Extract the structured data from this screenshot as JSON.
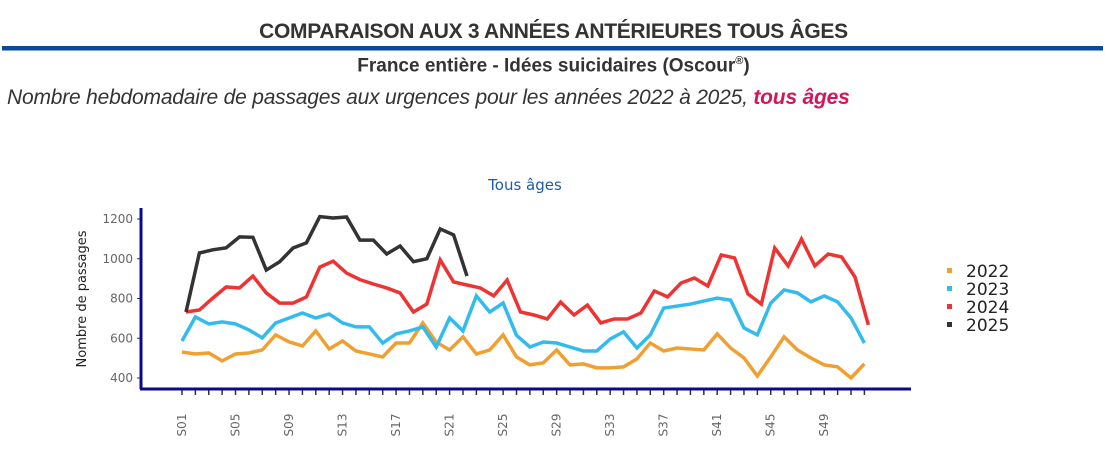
{
  "header": {
    "title": "COMPARAISON AUX 3 ANNÉES ANTÉRIEURES TOUS ÂGES",
    "subtitle": "France entière - Idées suicidaires (Oscour",
    "subtitle_sup": "®",
    "subtitle_end": ")",
    "description": "Nombre hebdomadaire de passages aux urgences pour les années 2022 à 2025, ",
    "description_highlight": "tous âges",
    "rule_color": "#0b4a99",
    "highlight_color": "#d3155b"
  },
  "chart_data": {
    "type": "line",
    "title": "Tous âges",
    "xlabel": "",
    "ylabel": "Nombre de passages",
    "ylim": [
      400,
      1200
    ],
    "yticks": [
      400,
      600,
      800,
      1000,
      1200
    ],
    "x": [
      "S01",
      "S02",
      "S03",
      "S04",
      "S05",
      "S06",
      "S07",
      "S08",
      "S09",
      "S10",
      "S11",
      "S12",
      "S13",
      "S14",
      "S15",
      "S16",
      "S17",
      "S18",
      "S19",
      "S20",
      "S21",
      "S22",
      "S23",
      "S24",
      "S25",
      "S26",
      "S27",
      "S28",
      "S29",
      "S30",
      "S31",
      "S32",
      "S33",
      "S34",
      "S35",
      "S36",
      "S37",
      "S38",
      "S39",
      "S40",
      "S41",
      "S42",
      "S43",
      "S44",
      "S45",
      "S46",
      "S47",
      "S48",
      "S49",
      "S50",
      "S51",
      "S52"
    ],
    "xtick_labels": [
      "S01",
      "S05",
      "S09",
      "S13",
      "S17",
      "S21",
      "S25",
      "S29",
      "S33",
      "S37",
      "S41",
      "S45",
      "S49"
    ],
    "grid": false,
    "legend_position": "right",
    "series": [
      {
        "name": "2022",
        "color": "#f0a030",
        "values": [
          531,
          521,
          526,
          486,
          521,
          526,
          541,
          617,
          582,
          561,
          637,
          546,
          586,
          536,
          521,
          506,
          576,
          576,
          677,
          581,
          541,
          607,
          521,
          541,
          617,
          506,
          466,
          476,
          541,
          466,
          471,
          451,
          451,
          456,
          496,
          576,
          536,
          551,
          546,
          541,
          622,
          551,
          501,
          410,
          506,
          607,
          541,
          501,
          466,
          456,
          400,
          471
        ]
      },
      {
        "name": "2023",
        "color": "#33bbee",
        "values": [
          586,
          707,
          672,
          682,
          672,
          642,
          602,
          677,
          702,
          727,
          702,
          722,
          677,
          657,
          657,
          576,
          622,
          637,
          657,
          556,
          702,
          637,
          813,
          732,
          777,
          615,
          556,
          581,
          576,
          556,
          536,
          536,
          596,
          632,
          551,
          617,
          752,
          762,
          772,
          787,
          802,
          792,
          652,
          617,
          777,
          843,
          828,
          783,
          813,
          783,
          702,
          576
        ]
      },
      {
        "name": "2024",
        "color": "#ee3333",
        "values": [
          732,
          742,
          802,
          858,
          853,
          913,
          828,
          777,
          777,
          808,
          958,
          988,
          928,
          895,
          873,
          853,
          828,
          732,
          772,
          994,
          883,
          868,
          853,
          813,
          893,
          732,
          717,
          697,
          782,
          717,
          767,
          677,
          697,
          697,
          727,
          838,
          808,
          878,
          903,
          863,
          1019,
          1004,
          823,
          772,
          1054,
          964,
          1099,
          964,
          1024,
          1009,
          908,
          667
        ]
      },
      {
        "name": "2025",
        "color": "#333333",
        "values": [
          732,
          1029,
          1045,
          1055,
          1110,
          1108,
          943,
          985,
          1054,
          1080,
          1212,
          1205,
          1210,
          1094,
          1094,
          1024,
          1064,
          985,
          1000,
          1150,
          1120,
          913
        ]
      }
    ]
  }
}
